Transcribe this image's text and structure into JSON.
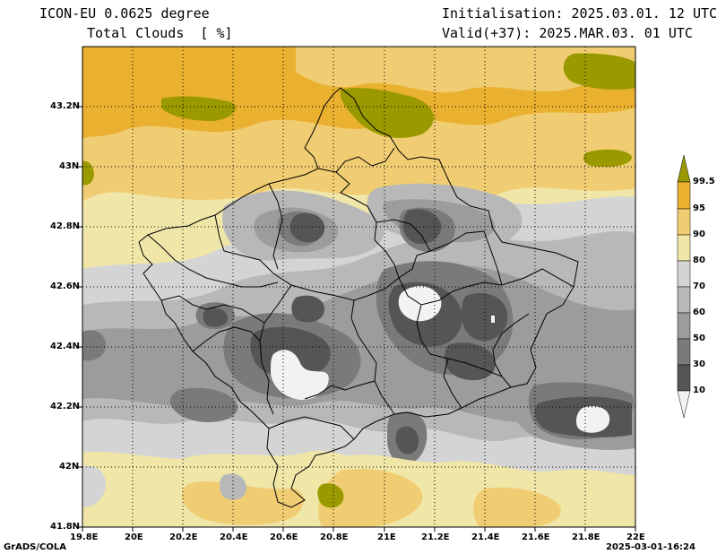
{
  "header": {
    "model": "ICON-EU 0.0625 degree",
    "variable": "Total Clouds  [ %]",
    "init": "Initialisation: 2025.03.01. 12 UTC",
    "valid": "Valid(+37): 2025.MAR.03. 01 UTC"
  },
  "axes": {
    "x_ticks": [
      "19.8E",
      "20E",
      "20.2E",
      "20.4E",
      "20.6E",
      "20.8E",
      "21E",
      "21.2E",
      "21.4E",
      "21.6E",
      "21.8E",
      "22E"
    ],
    "y_ticks": [
      "43.2N",
      "43N",
      "42.8N",
      "42.6N",
      "42.4N",
      "42.2N",
      "42N",
      "41.8N"
    ],
    "lon_range": [
      19.8,
      22.0
    ],
    "lat_range": [
      41.8,
      43.4
    ]
  },
  "colorbar": {
    "levels": [
      "99.5",
      "95",
      "90",
      "80",
      "70",
      "60",
      "50",
      "30",
      "10"
    ],
    "colors": {
      "lt10": "#f2f2f2",
      "10_30": "#555555",
      "30_50": "#7a7a7a",
      "50_60": "#9c9c9c",
      "60_70": "#b8b8b8",
      "70_80": "#d4d4d4",
      "80_90": "#efe6a8",
      "90_95": "#f0cd72",
      "95_99.5": "#eab030",
      "gt99.5": "#9a9a00"
    }
  },
  "footer": {
    "left": "GrADS/COLA",
    "right": "2025-03-01-16:24"
  }
}
